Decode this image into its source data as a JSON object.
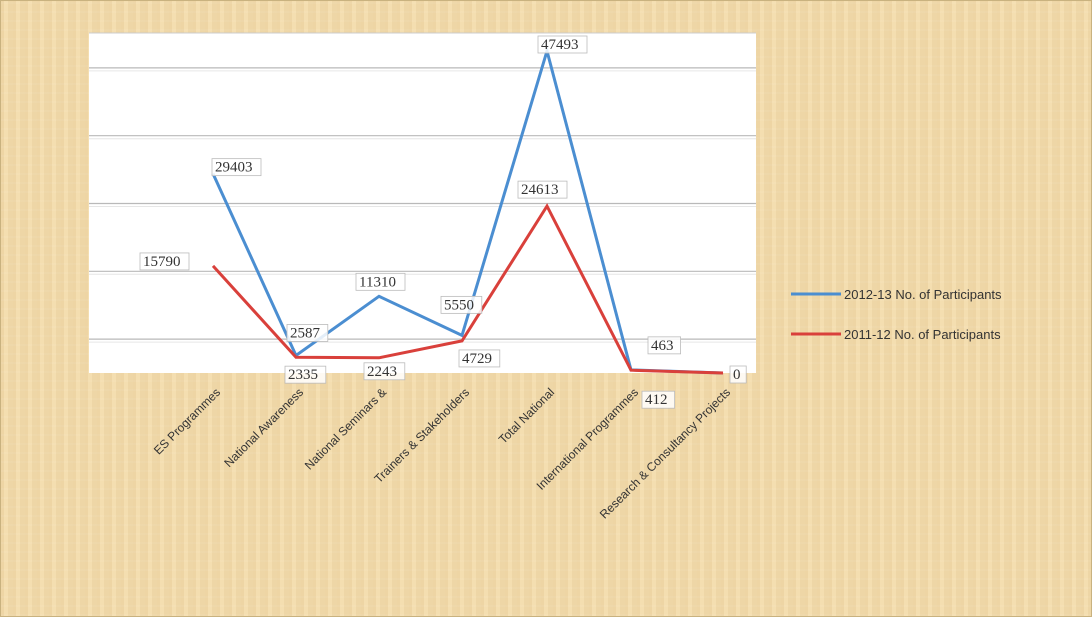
{
  "chart_data": {
    "type": "line",
    "title": "",
    "xlabel": "",
    "ylabel": "",
    "ylim": [
      0,
      50000
    ],
    "grid": true,
    "legend_position": "right",
    "categories": [
      "ES Programmes",
      "National Awareness",
      "National Seminars &",
      "Trainers & Stakeholders",
      "Total National",
      "International Programmes",
      "Research & Consultancy Projects"
    ],
    "series": [
      {
        "name": "2012-13 No. of Participants",
        "color": "#4b8ed1",
        "values": [
          29403,
          2587,
          11310,
          5550,
          47493,
          463,
          0
        ],
        "labels": [
          "29403",
          "2587",
          "11310",
          "5550",
          "47493",
          "463",
          ""
        ]
      },
      {
        "name": "2011-12 No. of Participants",
        "color": "#d9403b",
        "values": [
          15790,
          2335,
          2243,
          4729,
          24613,
          412,
          0
        ],
        "labels": [
          "15790",
          "2335",
          "2243",
          "4729",
          "24613",
          "412",
          "0"
        ]
      }
    ]
  }
}
